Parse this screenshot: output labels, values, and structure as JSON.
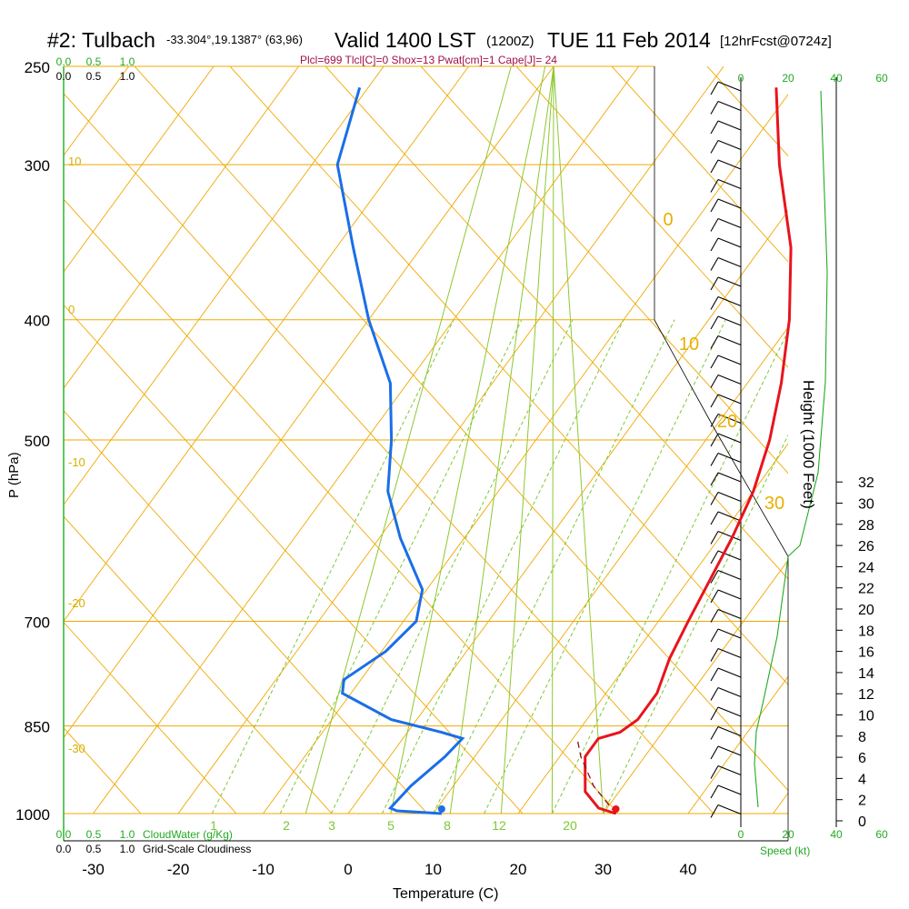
{
  "header": {
    "station": "#2: Tulbach",
    "coords": "-33.304°,19.1387° (63,96)",
    "valid": "Valid 1400 LST",
    "zulu": "(1200Z)",
    "date": "TUE 11 Feb 2014",
    "forecast": "[12hrFcst@0724z]",
    "indices": "Plcl=699 Tlcl[C]=0 Shox=13 Pwat[cm]=1 Cape[J]= 24"
  },
  "axes": {
    "pressure_label": "P (hPa)",
    "temperature_label": "Temperature (C)",
    "height_label": "Height (1000 Feet)",
    "speed_label": "Speed (kt)",
    "cloudwater_label": "CloudWater (g/Kg)",
    "cloudiness_label": "Grid-Scale Cloudiness"
  },
  "colors": {
    "temperature": "#e8141c",
    "dewpoint": "#1a6ee8",
    "isobar": "#f0a800",
    "mixing_ratio": "#7cc832",
    "adiabat": "#8cc832",
    "green_text": "#22aa22",
    "maroon_text": "#a0104a"
  },
  "chart_data": {
    "type": "line",
    "subtype": "skew-t log-p sounding",
    "pressure_levels": [
      250,
      300,
      400,
      500,
      700,
      850,
      1000
    ],
    "temperature_ticks": [
      -30,
      -20,
      -10,
      0,
      10,
      20,
      30,
      40
    ],
    "height_ticks": [
      0,
      2,
      4,
      6,
      8,
      10,
      12,
      14,
      16,
      18,
      20,
      22,
      24,
      26,
      28,
      30,
      32
    ],
    "speed_ticks_top": [
      0,
      20,
      40,
      60
    ],
    "speed_ticks_bottom": [
      0,
      20,
      40,
      60
    ],
    "cloud_ticks": [
      "0.0",
      "0.5",
      "1.0"
    ],
    "mixing_ratio_labels": [
      "1",
      "2",
      "3",
      "5",
      "8",
      "12",
      "20"
    ],
    "theta_labels_left": [
      "10",
      "0",
      "-10",
      "-20",
      "-30"
    ],
    "thetae_labels_right": [
      "0",
      "10",
      "20",
      "30"
    ],
    "series": [
      {
        "name": "Temperature",
        "values_note": "",
        "points": [
          [
            1000,
            31.5
          ],
          [
            990,
            29
          ],
          [
            960,
            26
          ],
          [
            900,
            23
          ],
          [
            870,
            23
          ],
          [
            860,
            25
          ],
          [
            840,
            26
          ],
          [
            800,
            26
          ],
          [
            750,
            24.5
          ],
          [
            700,
            23.5
          ],
          [
            600,
            21.5
          ],
          [
            550,
            20
          ],
          [
            500,
            17.5
          ],
          [
            450,
            14
          ],
          [
            400,
            9.5
          ],
          [
            350,
            3.5
          ],
          [
            300,
            -5
          ],
          [
            260,
            -12
          ]
        ]
      },
      {
        "name": "Dewpoint",
        "points": [
          [
            1000,
            11
          ],
          [
            995,
            5.5
          ],
          [
            990,
            4.5
          ],
          [
            950,
            5
          ],
          [
            900,
            6.5
          ],
          [
            870,
            7
          ],
          [
            860,
            4
          ],
          [
            840,
            -3
          ],
          [
            800,
            -11
          ],
          [
            780,
            -12
          ],
          [
            740,
            -9.5
          ],
          [
            700,
            -8.5
          ],
          [
            660,
            -10.5
          ],
          [
            600,
            -17.5
          ],
          [
            550,
            -23
          ],
          [
            500,
            -27
          ],
          [
            450,
            -32
          ],
          [
            400,
            -40
          ],
          [
            350,
            -48
          ],
          [
            300,
            -57
          ],
          [
            260,
            -61
          ]
        ]
      },
      {
        "name": "Parcel",
        "points": [
          [
            1000,
            31.5
          ],
          [
            950,
            26.5
          ],
          [
            900,
            22.5
          ],
          [
            870,
            20.5
          ]
        ]
      }
    ],
    "surface_points": {
      "temperature": 31.5,
      "dewpoint": 11
    }
  }
}
